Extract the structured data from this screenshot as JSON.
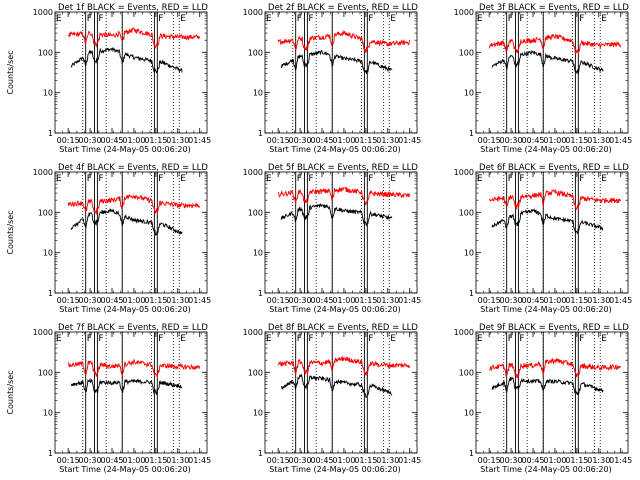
{
  "chart_data": [
    {
      "type": "line",
      "title": "Det 1f BLACK = Events, RED = LLD",
      "xlabel": "Start Time (24-May-05 00:06:20)",
      "ylabel": "Counts/sec",
      "yscale": "log",
      "ylim": [
        1,
        1000
      ],
      "xlim": [
        "00:06",
        "01:50"
      ],
      "xticks": [
        "00:15",
        "00:30",
        "00:45",
        "01:00",
        "01:15",
        "01:30",
        "01:45"
      ],
      "yticks": [
        "1",
        "10",
        "100",
        "1000"
      ],
      "flag_labels": [
        "E",
        "F",
        "F",
        "F",
        "E"
      ],
      "series": [
        {
          "color": "#000000",
          "approx_values": {
            "00:17": 45,
            "00:30": 100,
            "00:45": 120,
            "01:00": 75,
            "01:20": 55,
            "01:33": 35
          }
        },
        {
          "color": "#ff0000",
          "approx_values": {
            "00:15": 270,
            "00:30": 300,
            "00:45": 260,
            "01:00": 360,
            "01:15": 260,
            "01:30": 240,
            "01:45": 240
          }
        }
      ]
    },
    {
      "type": "line",
      "title": "Det 2f BLACK = Events, RED = LLD",
      "xlabel": "Start Time (24-May-05 00:06:20)",
      "ylabel": "",
      "yscale": "log",
      "ylim": [
        1,
        1000
      ],
      "xlim": [
        "00:06",
        "01:50"
      ],
      "xticks": [
        "00:15",
        "00:30",
        "00:45",
        "01:00",
        "01:15",
        "01:30",
        "01:45"
      ],
      "yticks": [
        "1",
        "10",
        "100",
        "1000"
      ],
      "flag_labels": [
        "E",
        "F",
        "F",
        "F",
        "E"
      ],
      "series": [
        {
          "color": "#000000",
          "approx_values": {
            "00:17": 45,
            "00:30": 80,
            "00:45": 100,
            "01:00": 70,
            "01:20": 55,
            "01:33": 35
          }
        },
        {
          "color": "#ff0000",
          "approx_values": {
            "00:15": 180,
            "00:30": 220,
            "00:45": 240,
            "01:00": 300,
            "01:15": 200,
            "01:30": 160,
            "01:45": 180
          }
        }
      ]
    },
    {
      "type": "line",
      "title": "Det 3f BLACK = Events, RED = LLD",
      "xlabel": "Start Time (24-May-05 00:06:20)",
      "ylabel": "",
      "yscale": "log",
      "ylim": [
        1,
        1000
      ],
      "xlim": [
        "00:06",
        "01:50"
      ],
      "xticks": [
        "00:15",
        "00:30",
        "00:45",
        "01:00",
        "01:15",
        "01:30",
        "01:45"
      ],
      "yticks": [
        "1",
        "10",
        "100",
        "1000"
      ],
      "flag_labels": [
        "E",
        "F",
        "F",
        "F",
        "E"
      ],
      "series": [
        {
          "color": "#000000",
          "approx_values": {
            "00:17": 45,
            "00:30": 80,
            "00:45": 100,
            "01:00": 70,
            "01:20": 55,
            "01:33": 35
          }
        },
        {
          "color": "#ff0000",
          "approx_values": {
            "00:15": 150,
            "00:30": 190,
            "00:45": 200,
            "01:00": 250,
            "01:15": 180,
            "01:30": 150,
            "01:45": 160
          }
        }
      ]
    },
    {
      "type": "line",
      "title": "Det 4f BLACK = Events, RED = LLD",
      "xlabel": "Start Time (24-May-05 00:06:20)",
      "ylabel": "Counts/sec",
      "yscale": "log",
      "ylim": [
        1,
        1000
      ],
      "xlim": [
        "00:06",
        "01:50"
      ],
      "xticks": [
        "00:15",
        "00:30",
        "00:45",
        "01:00",
        "01:15",
        "01:30",
        "01:45"
      ],
      "yticks": [
        "1",
        "10",
        "100",
        "1000"
      ],
      "flag_labels": [
        "E",
        "F",
        "F",
        "F",
        "E"
      ],
      "series": [
        {
          "color": "#000000",
          "approx_values": {
            "00:17": 40,
            "00:30": 90,
            "00:45": 110,
            "01:00": 65,
            "01:20": 50,
            "01:33": 30
          }
        },
        {
          "color": "#ff0000",
          "approx_values": {
            "00:15": 160,
            "00:30": 180,
            "00:45": 200,
            "01:00": 260,
            "01:15": 180,
            "01:30": 150,
            "01:45": 150
          }
        }
      ]
    },
    {
      "type": "line",
      "title": "Det 5f BLACK = Events, RED = LLD",
      "xlabel": "Start Time (24-May-05 00:06:20)",
      "ylabel": "",
      "yscale": "log",
      "ylim": [
        1,
        1000
      ],
      "xlim": [
        "00:06",
        "01:50"
      ],
      "xticks": [
        "00:15",
        "00:30",
        "00:45",
        "01:00",
        "01:15",
        "01:30",
        "01:45"
      ],
      "yticks": [
        "1",
        "10",
        "100",
        "1000"
      ],
      "flag_labels": [
        "E",
        "F",
        "F",
        "F",
        "E"
      ],
      "series": [
        {
          "color": "#000000",
          "approx_values": {
            "00:17": 70,
            "00:30": 120,
            "00:45": 150,
            "01:00": 110,
            "01:20": 90,
            "01:33": 70
          }
        },
        {
          "color": "#ff0000",
          "approx_values": {
            "00:15": 280,
            "00:30": 320,
            "00:45": 330,
            "01:00": 380,
            "01:15": 300,
            "01:30": 280,
            "01:45": 260
          }
        }
      ]
    },
    {
      "type": "line",
      "title": "Det 6f BLACK = Events, RED = LLD",
      "xlabel": "Start Time (24-May-05 00:06:20)",
      "ylabel": "",
      "yscale": "log",
      "ylim": [
        1,
        1000
      ],
      "xlim": [
        "00:06",
        "01:50"
      ],
      "xticks": [
        "00:15",
        "00:30",
        "00:45",
        "01:00",
        "01:15",
        "01:30",
        "01:45"
      ],
      "yticks": [
        "1",
        "10",
        "100",
        "1000"
      ],
      "flag_labels": [
        "E",
        "F",
        "F",
        "F",
        "E"
      ],
      "series": [
        {
          "color": "#000000",
          "approx_values": {
            "00:17": 45,
            "00:30": 80,
            "00:45": 110,
            "01:00": 70,
            "01:20": 55,
            "01:33": 40
          }
        },
        {
          "color": "#ff0000",
          "approx_values": {
            "00:15": 200,
            "00:30": 240,
            "00:45": 260,
            "01:00": 320,
            "01:15": 230,
            "01:30": 200,
            "01:45": 200
          }
        }
      ]
    },
    {
      "type": "line",
      "title": "Det 7f BLACK = Events, RED = LLD",
      "xlabel": "Start Time (24-May-05 00:06:20)",
      "ylabel": "Counts/sec",
      "yscale": "log",
      "ylim": [
        1,
        1000
      ],
      "xlim": [
        "00:06",
        "01:50"
      ],
      "xticks": [
        "00:15",
        "00:30",
        "00:45",
        "01:00",
        "01:15",
        "01:30",
        "01:45"
      ],
      "yticks": [
        "1",
        "10",
        "100",
        "1000"
      ],
      "flag_labels": [
        "E",
        "F",
        "F",
        "F",
        "E"
      ],
      "series": [
        {
          "color": "#000000",
          "approx_values": {
            "00:17": 50,
            "00:30": 60,
            "00:45": 55,
            "01:00": 60,
            "01:20": 55,
            "01:33": 45
          }
        },
        {
          "color": "#ff0000",
          "approx_values": {
            "00:15": 150,
            "00:30": 170,
            "00:45": 140,
            "01:00": 180,
            "01:15": 150,
            "01:30": 140,
            "01:45": 130
          }
        }
      ]
    },
    {
      "type": "line",
      "title": "Det 8f BLACK = Events, RED = LLD",
      "xlabel": "Start Time (24-May-05 00:06:20)",
      "ylabel": "",
      "yscale": "log",
      "ylim": [
        1,
        1000
      ],
      "xlim": [
        "00:06",
        "01:50"
      ],
      "xticks": [
        "00:15",
        "00:30",
        "00:45",
        "01:00",
        "01:15",
        "01:30",
        "01:45"
      ],
      "yticks": [
        "1",
        "10",
        "100",
        "1000"
      ],
      "flag_labels": [
        "E",
        "F",
        "F",
        "F",
        "E"
      ],
      "series": [
        {
          "color": "#000000",
          "approx_values": {
            "00:17": 40,
            "00:30": 80,
            "00:45": 70,
            "01:00": 55,
            "01:20": 45,
            "01:33": 30
          }
        },
        {
          "color": "#ff0000",
          "approx_values": {
            "00:15": 160,
            "00:30": 180,
            "00:45": 170,
            "01:00": 220,
            "01:15": 170,
            "01:30": 150,
            "01:45": 150
          }
        }
      ]
    },
    {
      "type": "line",
      "title": "Det 9f BLACK = Events, RED = LLD",
      "xlabel": "Start Time (24-May-05 00:06:20)",
      "ylabel": "",
      "yscale": "log",
      "ylim": [
        1,
        1000
      ],
      "xlim": [
        "00:06",
        "01:50"
      ],
      "xticks": [
        "00:15",
        "00:30",
        "00:45",
        "01:00",
        "01:15",
        "01:30",
        "01:45"
      ],
      "yticks": [
        "1",
        "10",
        "100",
        "1000"
      ],
      "flag_labels": [
        "E",
        "F",
        "F",
        "F",
        "E"
      ],
      "series": [
        {
          "color": "#000000",
          "approx_values": {
            "00:17": 40,
            "00:30": 70,
            "00:45": 60,
            "01:00": 60,
            "01:20": 50,
            "01:33": 35
          }
        },
        {
          "color": "#ff0000",
          "approx_values": {
            "00:15": 130,
            "00:30": 150,
            "00:45": 150,
            "01:00": 200,
            "01:15": 150,
            "01:30": 130,
            "01:45": 140
          }
        }
      ]
    }
  ]
}
